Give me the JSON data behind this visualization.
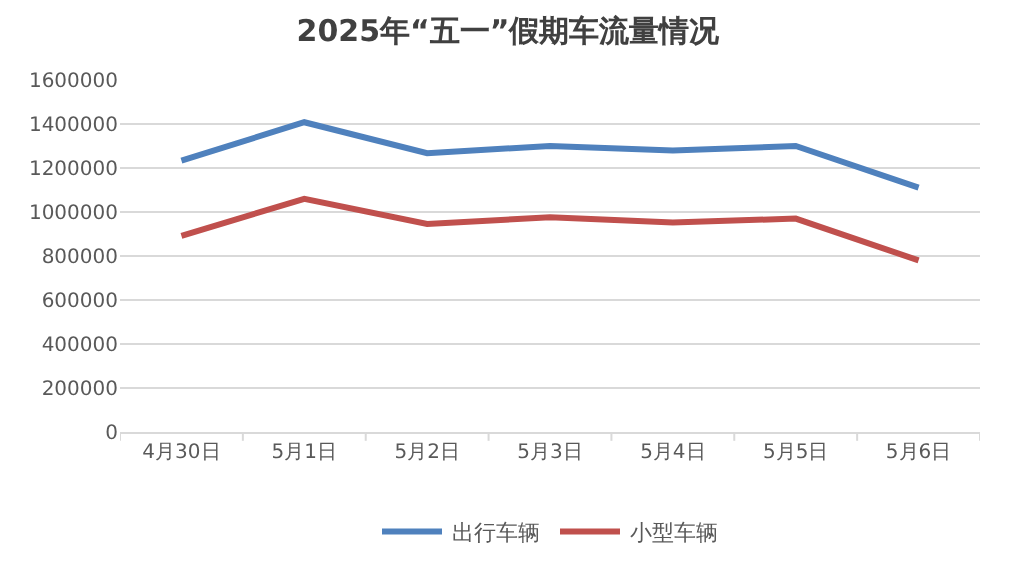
{
  "chart_data": {
    "type": "line",
    "title": "2025年“五一”假期车流量情况",
    "categories": [
      "4月30日",
      "5月1日",
      "5月2日",
      "5月3日",
      "5月4日",
      "5月5日",
      "5月6日"
    ],
    "series": [
      {
        "name": "出行车辆",
        "color": "#4f81bd",
        "values": [
          1234000,
          1408000,
          1267000,
          1300000,
          1279000,
          1300000,
          1111000
        ]
      },
      {
        "name": "小型车辆",
        "color": "#c0504d",
        "values": [
          892000,
          1060000,
          946000,
          976000,
          952000,
          970000,
          780000
        ]
      }
    ],
    "ylim": [
      0,
      1600000
    ],
    "yticks": [
      0,
      200000,
      400000,
      600000,
      800000,
      1000000,
      1200000,
      1400000,
      1600000
    ],
    "grid": "y",
    "legend": "bottom",
    "marker": "none",
    "line_style": "solid"
  }
}
